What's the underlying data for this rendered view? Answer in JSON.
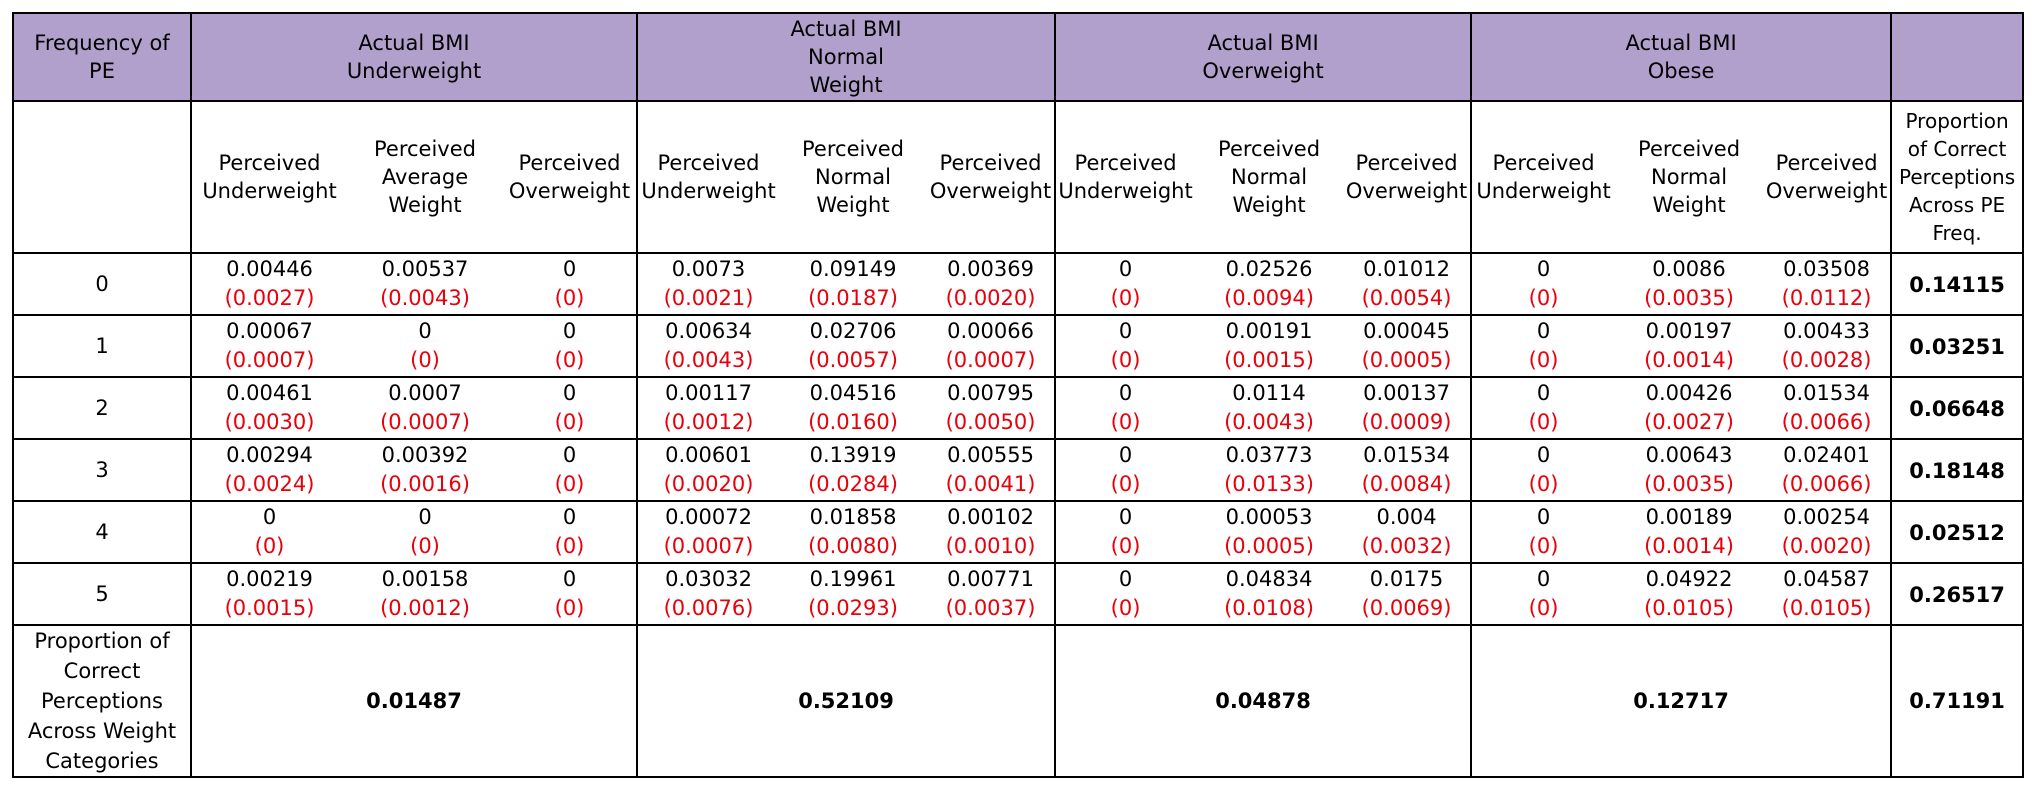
{
  "header": {
    "freq_label": "Frequency of\nPE",
    "groups": [
      {
        "label": "Actual BMI\nUnderweight"
      },
      {
        "label": "Actual BMI\nNormal\nWeight"
      },
      {
        "label": "Actual BMI\nOverweight"
      },
      {
        "label": "Actual BMI\nObese"
      }
    ],
    "sub": [
      [
        "Perceived\nUnderweight",
        "Perceived\nAverage\nWeight",
        "Perceived\nOverweight"
      ],
      [
        "Perceived\nUnderweight",
        "Perceived\nNormal\nWeight",
        "Perceived\nOverweight"
      ],
      [
        "Perceived\nUnderweight",
        "Perceived\nNormal\nWeight",
        "Perceived\nOverweight"
      ],
      [
        "Perceived\nUnderweight",
        "Perceived\nNormal\nWeight",
        "Perceived\nOverweight"
      ]
    ],
    "last_col": "Proportion\nof Correct\nPerceptions\nAcross PE\nFreq."
  },
  "rows": [
    {
      "freq": "0",
      "cells": [
        [
          "0.00446",
          "(0.0027)"
        ],
        [
          "0.00537",
          "(0.0043)"
        ],
        [
          "0",
          "(0)"
        ],
        [
          "0.0073",
          "(0.0021)"
        ],
        [
          "0.09149",
          "(0.0187)"
        ],
        [
          "0.00369",
          "(0.0020)"
        ],
        [
          "0",
          "(0)"
        ],
        [
          "0.02526",
          "(0.0094)"
        ],
        [
          "0.01012",
          "(0.0054)"
        ],
        [
          "0",
          "(0)"
        ],
        [
          "0.0086",
          "(0.0035)"
        ],
        [
          "0.03508",
          "(0.0112)"
        ]
      ],
      "total": "0.14115"
    },
    {
      "freq": "1",
      "cells": [
        [
          "0.00067",
          "(0.0007)"
        ],
        [
          "0",
          "(0)"
        ],
        [
          "0",
          "(0)"
        ],
        [
          "0.00634",
          "(0.0043)"
        ],
        [
          "0.02706",
          "(0.0057)"
        ],
        [
          "0.00066",
          "(0.0007)"
        ],
        [
          "0",
          "(0)"
        ],
        [
          "0.00191",
          "(0.0015)"
        ],
        [
          "0.00045",
          "(0.0005)"
        ],
        [
          "0",
          "(0)"
        ],
        [
          "0.00197",
          "(0.0014)"
        ],
        [
          "0.00433",
          "(0.0028)"
        ]
      ],
      "total": "0.03251"
    },
    {
      "freq": "2",
      "cells": [
        [
          "0.00461",
          "(0.0030)"
        ],
        [
          "0.0007",
          "(0.0007)"
        ],
        [
          "0",
          "(0)"
        ],
        [
          "0.00117",
          "(0.0012)"
        ],
        [
          "0.04516",
          "(0.0160)"
        ],
        [
          "0.00795",
          "(0.0050)"
        ],
        [
          "0",
          "(0)"
        ],
        [
          "0.0114",
          "(0.0043)"
        ],
        [
          "0.00137",
          "(0.0009)"
        ],
        [
          "0",
          "(0)"
        ],
        [
          "0.00426",
          "(0.0027)"
        ],
        [
          "0.01534",
          "(0.0066)"
        ]
      ],
      "total": "0.06648"
    },
    {
      "freq": "3",
      "cells": [
        [
          "0.00294",
          "(0.0024)"
        ],
        [
          "0.00392",
          "(0.0016)"
        ],
        [
          "0",
          "(0)"
        ],
        [
          "0.00601",
          "(0.0020)"
        ],
        [
          "0.13919",
          "(0.0284)"
        ],
        [
          "0.00555",
          "(0.0041)"
        ],
        [
          "0",
          "(0)"
        ],
        [
          "0.03773",
          "(0.0133)"
        ],
        [
          "0.01534",
          "(0.0084)"
        ],
        [
          "0",
          "(0)"
        ],
        [
          "0.00643",
          "(0.0035)"
        ],
        [
          "0.02401",
          "(0.0066)"
        ]
      ],
      "total": "0.18148"
    },
    {
      "freq": "4",
      "cells": [
        [
          "0",
          "(0)"
        ],
        [
          "0",
          "(0)"
        ],
        [
          "0",
          "(0)"
        ],
        [
          "0.00072",
          "(0.0007)"
        ],
        [
          "0.01858",
          "(0.0080)"
        ],
        [
          "0.00102",
          "(0.0010)"
        ],
        [
          "0",
          "(0)"
        ],
        [
          "0.00053",
          "(0.0005)"
        ],
        [
          "0.004",
          "(0.0032)"
        ],
        [
          "0",
          "(0)"
        ],
        [
          "0.00189",
          "(0.0014)"
        ],
        [
          "0.00254",
          "(0.0020)"
        ]
      ],
      "total": "0.02512"
    },
    {
      "freq": "5",
      "cells": [
        [
          "0.00219",
          "(0.0015)"
        ],
        [
          "0.00158",
          "(0.0012)"
        ],
        [
          "0",
          "(0)"
        ],
        [
          "0.03032",
          "(0.0076)"
        ],
        [
          "0.19961",
          "(0.0293)"
        ],
        [
          "0.00771",
          "(0.0037)"
        ],
        [
          "0",
          "(0)"
        ],
        [
          "0.04834",
          "(0.0108)"
        ],
        [
          "0.0175",
          "(0.0069)"
        ],
        [
          "0",
          "(0)"
        ],
        [
          "0.04922",
          "(0.0105)"
        ],
        [
          "0.04587",
          "(0.0105)"
        ]
      ],
      "total": "0.26517"
    }
  ],
  "footer": {
    "label": "Proportion of\nCorrect\nPerceptions\nAcross Weight\nCategories",
    "group_totals": [
      "0.01487",
      "0.52109",
      "0.04878",
      "0.12717"
    ],
    "grand_total": "0.71191"
  },
  "colors": {
    "header_bg": "#b1a0cb",
    "std_error": "#e8000b"
  }
}
